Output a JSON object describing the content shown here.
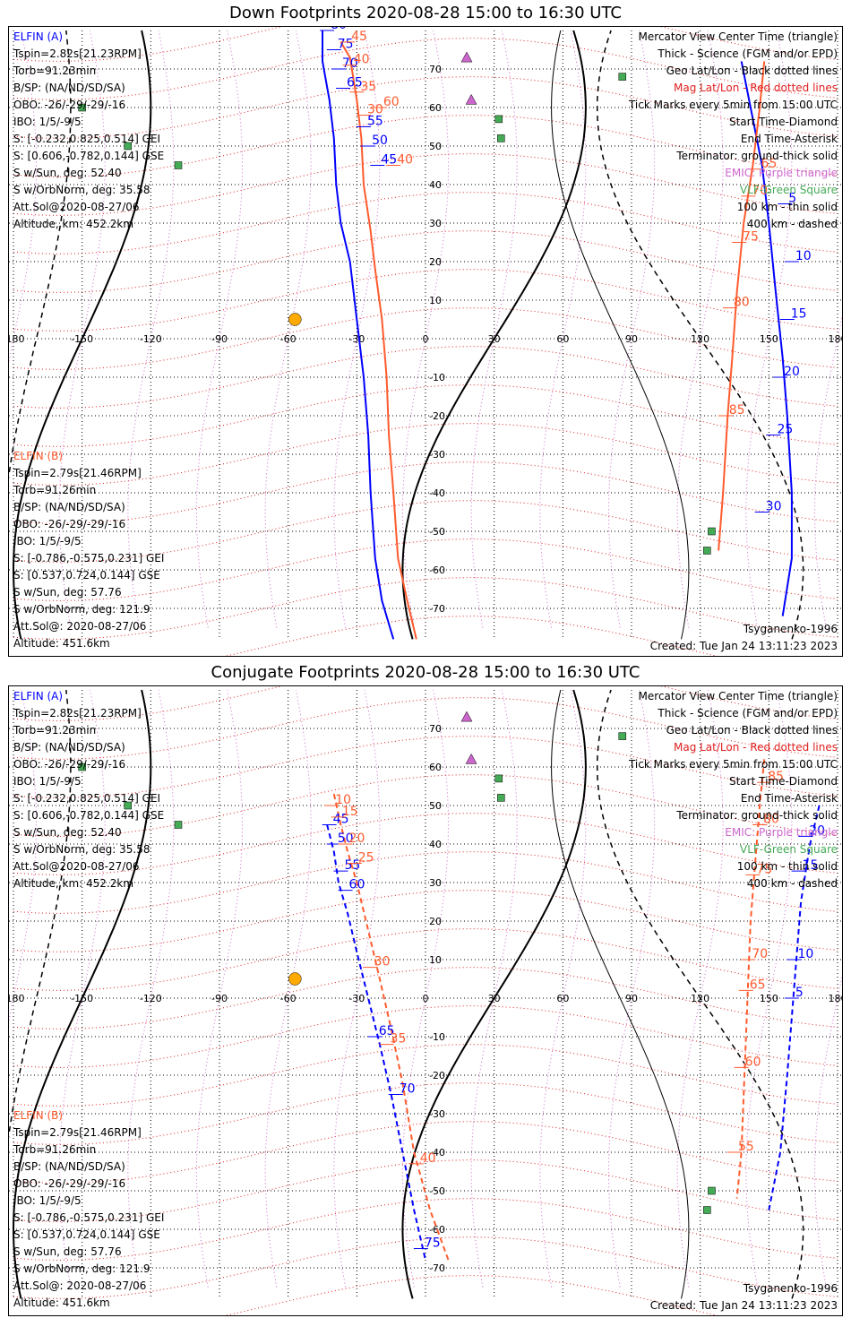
{
  "panels": [
    {
      "title": "Down Footprints 2020-08-28 15:00 to 16:30 UTC",
      "elfin_a": {
        "label": "ELFIN (A)",
        "lines": [
          "Tspin=2.82s[21.23RPM]",
          "Torb=91.23min",
          "B/SP: (NA/ND/SD/SA)",
          "OBO: -26/-29/-29/-16",
          "IBO: 1/5/-9/5",
          "S: [-0.232,0.825,0.514] GEI",
          "S: [0.606,-0.782,0.144] GSE",
          "S w/Sun, deg: 52.40",
          "S w/OrbNorm, deg: 35.58",
          "Att.Sol@2020-08-27/06",
          "Altitude, km: 452.2km"
        ]
      },
      "elfin_b": {
        "label": "ELFIN (B)",
        "lines": [
          "Tspin=2.79s[21.46RPM]",
          "Torb=91.26min",
          "B/SP: (NA/ND/SD/SA)",
          "OBO: -26/-29/-29/-16",
          "IBO: 1/5/-9/5",
          "S: [-0.786,-0.575,0.231] GEI",
          "S: [0.537,0.724,0.144] GSE",
          "S w/Sun, deg: 57.76",
          "S w/OrbNorm, deg: 121.9",
          "Att.Sol@: 2020-08-27/06",
          "Altitude: 451.6km"
        ]
      },
      "footer_right": [
        "Tsyganenko-1996",
        "Created: Tue Jan 24 13:11:23 2023"
      ],
      "a_track": [
        [
          -45,
          80
        ],
        [
          -45,
          72
        ],
        [
          -42,
          62
        ],
        [
          -40,
          52
        ],
        [
          -39,
          40
        ],
        [
          -37,
          30
        ],
        [
          -33,
          20
        ],
        [
          -30,
          5
        ],
        [
          -27,
          -10
        ],
        [
          -25,
          -25
        ],
        [
          -24,
          -40
        ],
        [
          -22,
          -57
        ],
        [
          -19,
          -68
        ],
        [
          -14,
          -78
        ]
      ],
      "a_ticks": [
        [
          -43,
          80,
          "80"
        ],
        [
          -40,
          75,
          "75"
        ],
        [
          -38,
          70,
          "70"
        ],
        [
          -36,
          65,
          "65"
        ],
        [
          -27,
          55,
          "55"
        ],
        [
          -25,
          50,
          "50"
        ],
        [
          -21,
          45,
          "45"
        ]
      ],
      "b_track": [
        [
          -37,
          77
        ],
        [
          -33,
          73
        ],
        [
          -30,
          62
        ],
        [
          -28,
          52
        ],
        [
          -27,
          40
        ],
        [
          -24,
          28
        ],
        [
          -22,
          18
        ],
        [
          -19,
          5
        ],
        [
          -17,
          -10
        ],
        [
          -16,
          -25
        ],
        [
          -14,
          -40
        ],
        [
          -12,
          -57
        ],
        [
          -8,
          -68
        ],
        [
          -4,
          -78
        ]
      ],
      "b_ticks": [
        [
          -34,
          77,
          "45"
        ],
        [
          -33,
          71,
          "40"
        ],
        [
          -30,
          64,
          "35"
        ],
        [
          -27,
          58,
          "30"
        ],
        [
          -20,
          60,
          "60"
        ],
        [
          -14,
          45,
          "40"
        ]
      ],
      "a2_track": [
        [
          138,
          72
        ],
        [
          142,
          60
        ],
        [
          147,
          45
        ],
        [
          150,
          30
        ],
        [
          153,
          12
        ],
        [
          156,
          -5
        ],
        [
          158,
          -20
        ],
        [
          160,
          -40
        ],
        [
          160,
          -57
        ],
        [
          156,
          -72
        ]
      ],
      "a2_ticks": [
        [
          157,
          35,
          "5"
        ],
        [
          160,
          20,
          "10"
        ],
        [
          158,
          5,
          "15"
        ],
        [
          155,
          -10,
          "20"
        ],
        [
          152,
          -25,
          "25"
        ],
        [
          147,
          -45,
          "30"
        ]
      ],
      "b2_track": [
        [
          148,
          72
        ],
        [
          146,
          60
        ],
        [
          143,
          45
        ],
        [
          139,
          30
        ],
        [
          136,
          12
        ],
        [
          134,
          -5
        ],
        [
          132,
          -20
        ],
        [
          130,
          -40
        ],
        [
          128,
          -55
        ]
      ],
      "b2_ticks": [
        [
          145,
          44,
          "65"
        ],
        [
          141,
          37,
          "70"
        ],
        [
          137,
          25,
          "75"
        ],
        [
          133,
          8,
          "80"
        ],
        [
          131,
          -20,
          "85"
        ]
      ],
      "right_legend_extra": {
        "thin_solid": "100 km - thin solid",
        "dashed": "400 km - dashed"
      }
    },
    {
      "title": "Conjugate Footprints 2020-08-28 15:00 to 16:30 UTC",
      "elfin_a": {
        "label": "ELFIN (A)",
        "lines": [
          "Tspin=2.82s[21.23RPM]",
          "Torb=91.23min",
          "B/SP: (NA/ND/SD/SA)",
          "OBO: -26/-29/-29/-16",
          "IBO: 1/5/-9/5",
          "S: [-0.232,0.825,0.514] GEI",
          "S: [0.606,-0.782,0.144] GSE",
          "S w/Sun, deg: 52.40",
          "S w/OrbNorm, deg: 35.58",
          "Att.Sol@2020-08-27/06",
          "Altitude, km: 452.2km"
        ]
      },
      "elfin_b": {
        "label": "ELFIN (B)",
        "lines": [
          "Tspin=2.79s[21.46RPM]",
          "Torb=91.26min",
          "B/SP: (NA/ND/SD/SA)",
          "OBO: -26/-29/-29/-16",
          "IBO: 1/5/-9/5",
          "S: [-0.786,-0.575,0.231] GEI",
          "S: [0.537,0.724,0.144] GSE",
          "S w/Sun, deg: 57.76",
          "S w/OrbNorm, deg: 121.9",
          "Att.Sol@: 2020-08-27/06",
          "Altitude: 451.6km"
        ]
      },
      "footer_right": [
        "Tsyganenko-1996",
        "Created: Tue Jan 24 13:11:23 2023"
      ],
      "a_track": [
        [
          -43,
          45
        ],
        [
          -40,
          38
        ],
        [
          -38,
          30
        ],
        [
          -34,
          22
        ],
        [
          -30,
          12
        ],
        [
          -25,
          0
        ],
        [
          -20,
          -12
        ],
        [
          -15,
          -25
        ],
        [
          -10,
          -40
        ],
        [
          -5,
          -55
        ],
        [
          0,
          -68
        ]
      ],
      "a_ticks": [
        [
          -42,
          45,
          "45"
        ],
        [
          -40,
          40,
          "50"
        ],
        [
          -37,
          33,
          "55"
        ],
        [
          -35,
          28,
          "60"
        ],
        [
          -22,
          -10,
          "65"
        ],
        [
          -13,
          -25,
          "70"
        ],
        [
          -2,
          -65,
          "75"
        ]
      ],
      "b_track": [
        [
          -40,
          53
        ],
        [
          -37,
          45
        ],
        [
          -34,
          38
        ],
        [
          -30,
          30
        ],
        [
          -26,
          20
        ],
        [
          -20,
          5
        ],
        [
          -15,
          -8
        ],
        [
          -10,
          -22
        ],
        [
          -5,
          -40
        ],
        [
          2,
          -55
        ],
        [
          10,
          -68
        ]
      ],
      "b_ticks": [
        [
          -41,
          50,
          "10"
        ],
        [
          -38,
          47,
          "15"
        ],
        [
          -35,
          40,
          "20"
        ],
        [
          -31,
          35,
          "25"
        ],
        [
          -24,
          8,
          "30"
        ],
        [
          -17,
          -12,
          "35"
        ],
        [
          -4,
          -43,
          "40"
        ]
      ],
      "a2_track": [
        [
          172,
          50
        ],
        [
          168,
          40
        ],
        [
          164,
          25
        ],
        [
          162,
          10
        ],
        [
          160,
          -5
        ],
        [
          158,
          -20
        ],
        [
          155,
          -40
        ],
        [
          150,
          -55
        ]
      ],
      "a2_ticks": [
        [
          166,
          42,
          "20"
        ],
        [
          163,
          33,
          "15"
        ],
        [
          161,
          10,
          "10"
        ],
        [
          160,
          0,
          "5"
        ]
      ],
      "b2_track": [
        [
          148,
          62
        ],
        [
          146,
          50
        ],
        [
          144,
          35
        ],
        [
          142,
          20
        ],
        [
          141,
          5
        ],
        [
          140,
          -10
        ],
        [
          139,
          -25
        ],
        [
          138,
          -40
        ],
        [
          136,
          -52
        ]
      ],
      "b2_ticks": [
        [
          148,
          56,
          "85"
        ],
        [
          146,
          45,
          "80"
        ],
        [
          143,
          32,
          "75"
        ],
        [
          141,
          10,
          "70"
        ],
        [
          140,
          2,
          "65"
        ],
        [
          138,
          -18,
          "60"
        ],
        [
          135,
          -40,
          "55"
        ]
      ],
      "right_legend_extra": {
        "thin_solid": "100 km - thin solid",
        "dashed": "400 km - dashed"
      }
    }
  ],
  "right_legend": [
    "Mercator View Center Time (triangle)",
    "Thick - Science (FGM and/or EPD)",
    "Geo Lat/Lon - Black dotted lines",
    "Mag Lat/Lon - Red dotted lines",
    "Tick Marks every 5min from 15:00 UTC",
    "Start Time-Diamond",
    "End Time-Asterisk",
    "Terminator: ground-thick solid",
    "EMIC: Purple triangle",
    "VLF-Green Square"
  ],
  "lon_labels": [
    "-180",
    "-150",
    "-120",
    "-90",
    "-60",
    "-30",
    "0",
    "30",
    "60",
    "90",
    "120",
    "150",
    "180"
  ],
  "lat_labels": [
    "70",
    "60",
    "50",
    "40",
    "30",
    "20",
    "10",
    "0",
    "-10",
    "-20",
    "-30",
    "-40",
    "-50",
    "-60",
    "-70"
  ],
  "colors": {
    "elfin_a": "#0000ff",
    "elfin_b": "#ff5b2e",
    "emic": "#cc66cc",
    "vlf": "#44aa55",
    "mag_grid": "#e02020",
    "geo_grid": "#000000",
    "sun": "#ffaa00"
  }
}
